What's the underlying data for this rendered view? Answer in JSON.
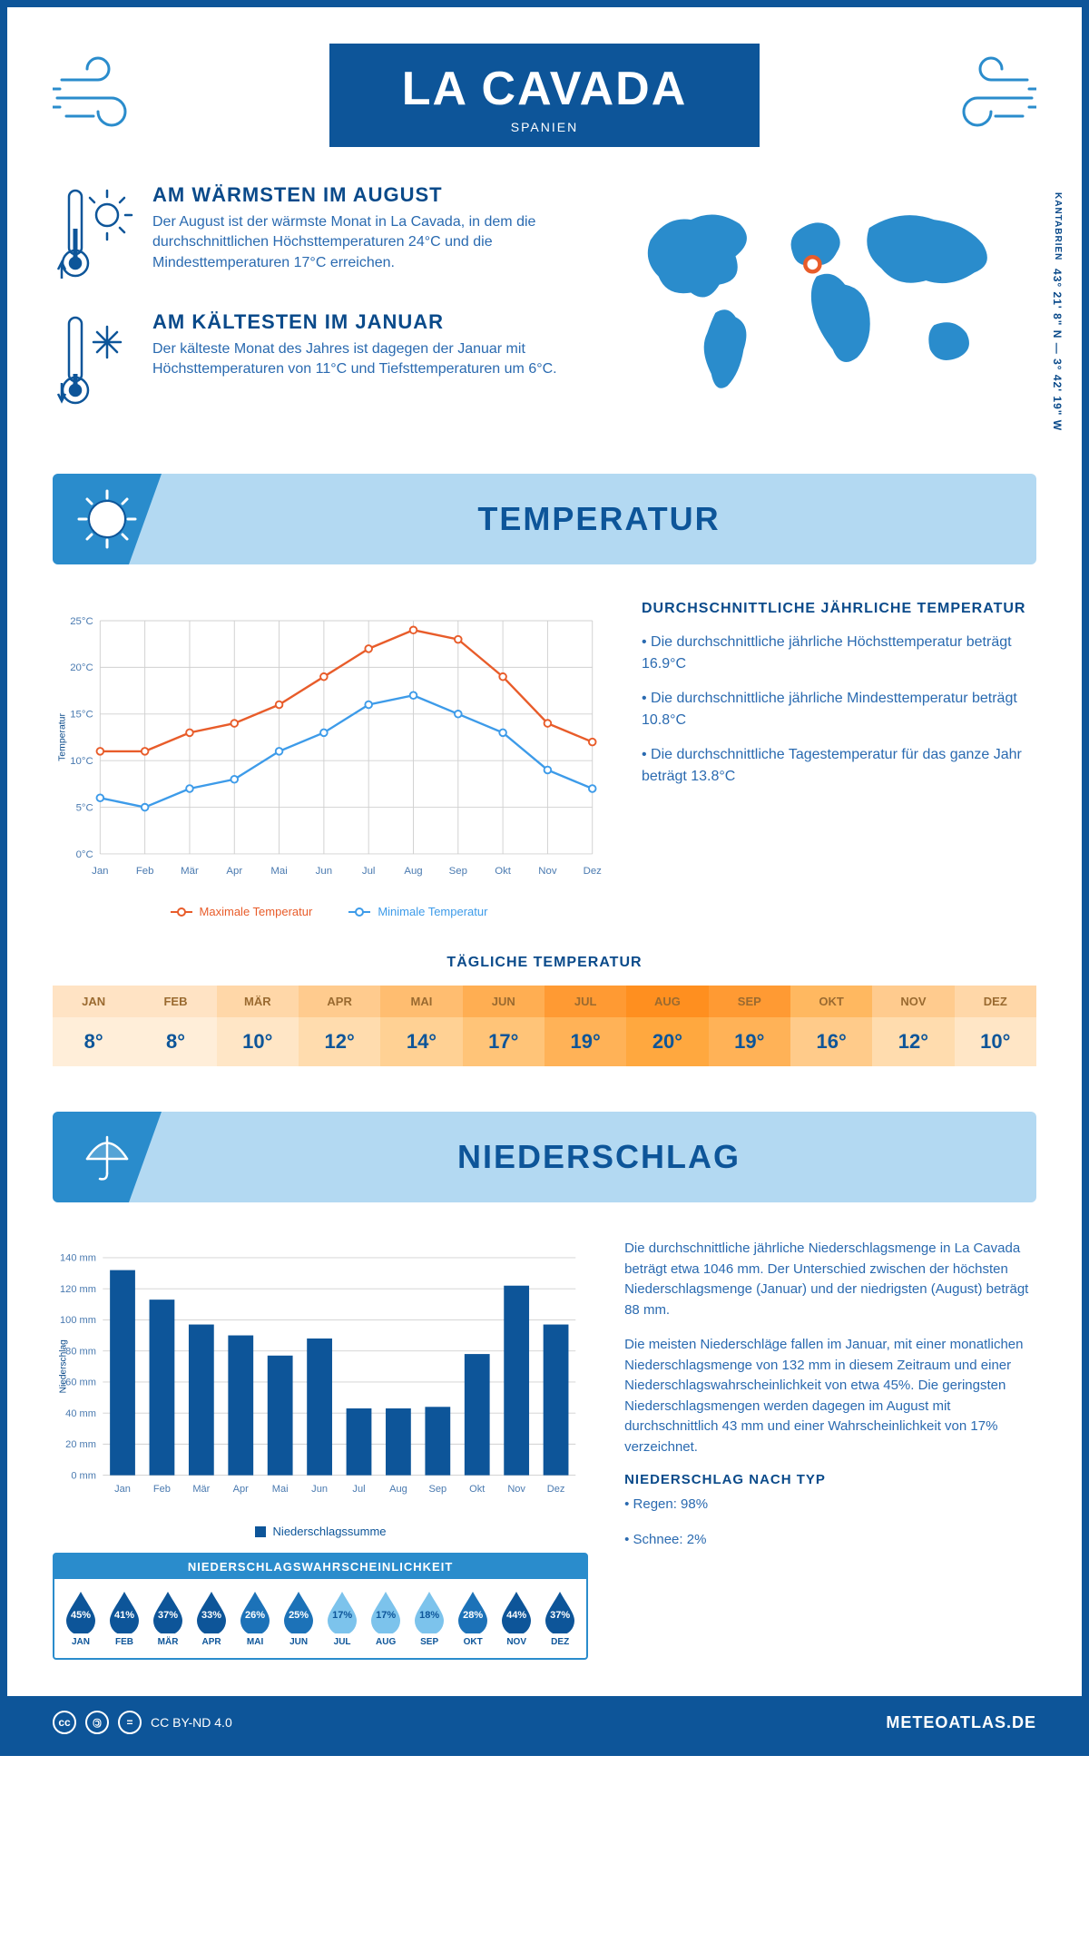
{
  "header": {
    "title": "LA CAVADA",
    "subtitle": "SPANIEN"
  },
  "coords": {
    "text": "43° 21' 8\" N — 3° 42' 19\" W",
    "region": "KANTABRIEN"
  },
  "facts": {
    "warm": {
      "title": "AM WÄRMSTEN IM AUGUST",
      "text": "Der August ist der wärmste Monat in La Cavada, in dem die durchschnittlichen Höchsttemperaturen 24°C und die Mindesttemperaturen 17°C erreichen."
    },
    "cold": {
      "title": "AM KÄLTESTEN IM JANUAR",
      "text": "Der kälteste Monat des Jahres ist dagegen der Januar mit Höchsttemperaturen von 11°C und Tiefsttemperaturen um 6°C."
    }
  },
  "sections": {
    "temp": "TEMPERATUR",
    "precip": "NIEDERSCHLAG"
  },
  "temp_chart": {
    "months": [
      "Jan",
      "Feb",
      "Mär",
      "Apr",
      "Mai",
      "Jun",
      "Jul",
      "Aug",
      "Sep",
      "Okt",
      "Nov",
      "Dez"
    ],
    "max": [
      11,
      11,
      13,
      14,
      16,
      19,
      22,
      24,
      23,
      19,
      14,
      12
    ],
    "min": [
      6,
      5,
      7,
      8,
      11,
      13,
      16,
      17,
      15,
      13,
      9,
      7
    ],
    "ylim": [
      0,
      25
    ],
    "ytick": 5,
    "max_color": "#e85c2a",
    "min_color": "#3d9be9",
    "grid_color": "#d8d8d8",
    "bg": "#ffffff",
    "ylabel": "Temperatur",
    "legend_max": "Maximale Temperatur",
    "legend_min": "Minimale Temperatur"
  },
  "temp_annual": {
    "heading": "DURCHSCHNITTLICHE JÄHRLICHE TEMPERATUR",
    "b1": "• Die durchschnittliche jährliche Höchsttemperatur beträgt 16.9°C",
    "b2": "• Die durchschnittliche jährliche Mindesttemperatur beträgt 10.8°C",
    "b3": "• Die durchschnittliche Tagestemperatur für das ganze Jahr beträgt 13.8°C"
  },
  "daily_temp": {
    "title": "TÄGLICHE TEMPERATUR",
    "months": [
      "JAN",
      "FEB",
      "MÄR",
      "APR",
      "MAI",
      "JUN",
      "JUL",
      "AUG",
      "SEP",
      "OKT",
      "NOV",
      "DEZ"
    ],
    "values": [
      "8°",
      "8°",
      "10°",
      "12°",
      "14°",
      "17°",
      "19°",
      "20°",
      "19°",
      "16°",
      "12°",
      "10°"
    ],
    "header_colors": [
      "#ffe3c4",
      "#ffe3c4",
      "#ffd7a8",
      "#ffcb8e",
      "#ffbd70",
      "#ffae52",
      "#ff9a33",
      "#ff8f1f",
      "#ff9a33",
      "#ffb860",
      "#ffcb8e",
      "#ffd7a8"
    ],
    "value_colors": [
      "#ffeed9",
      "#ffeed9",
      "#ffe6c6",
      "#ffdcae",
      "#ffd194",
      "#ffc478",
      "#ffb257",
      "#ffa83f",
      "#ffb257",
      "#ffcb8a",
      "#ffdcae",
      "#ffe6c6"
    ]
  },
  "precip_chart": {
    "months": [
      "Jan",
      "Feb",
      "Mär",
      "Apr",
      "Mai",
      "Jun",
      "Jul",
      "Aug",
      "Sep",
      "Okt",
      "Nov",
      "Dez"
    ],
    "values": [
      132,
      113,
      97,
      90,
      77,
      88,
      43,
      43,
      44,
      78,
      122,
      97
    ],
    "ylim": [
      0,
      140
    ],
    "ytick": 20,
    "bar_color": "#0d5599",
    "grid_color": "#d8d8d8",
    "ylabel": "Niederschlag",
    "legend": "Niederschlagssumme"
  },
  "precip_text": {
    "p1": "Die durchschnittliche jährliche Niederschlagsmenge in La Cavada beträgt etwa 1046 mm. Der Unterschied zwischen der höchsten Niederschlagsmenge (Januar) und der niedrigsten (August) beträgt 88 mm.",
    "p2": "Die meisten Niederschläge fallen im Januar, mit einer monatlichen Niederschlagsmenge von 132 mm in diesem Zeitraum und einer Niederschlagswahrscheinlichkeit von etwa 45%. Die geringsten Niederschlagsmengen werden dagegen im August mit durchschnittlich 43 mm und einer Wahrscheinlichkeit von 17% verzeichnet.",
    "type_heading": "NIEDERSCHLAG NACH TYP",
    "type1": "• Regen: 98%",
    "type2": "• Schnee: 2%"
  },
  "precip_prob": {
    "title": "NIEDERSCHLAGSWAHRSCHEINLICHKEIT",
    "months": [
      "JAN",
      "FEB",
      "MÄR",
      "APR",
      "MAI",
      "JUN",
      "JUL",
      "AUG",
      "SEP",
      "OKT",
      "NOV",
      "DEZ"
    ],
    "values": [
      "45%",
      "41%",
      "37%",
      "33%",
      "26%",
      "25%",
      "17%",
      "17%",
      "18%",
      "28%",
      "44%",
      "37%"
    ],
    "colors": [
      "#0d5599",
      "#0d5599",
      "#0d5599",
      "#0d5599",
      "#1c72b8",
      "#1c72b8",
      "#7cc3ec",
      "#7cc3ec",
      "#7cc3ec",
      "#1c72b8",
      "#0d5599",
      "#0d5599"
    ],
    "text_colors": [
      "#fff",
      "#fff",
      "#fff",
      "#fff",
      "#fff",
      "#fff",
      "#0d5599",
      "#0d5599",
      "#0d5599",
      "#fff",
      "#fff",
      "#fff"
    ]
  },
  "footer": {
    "license": "CC BY-ND 4.0",
    "brand": "METEOATLAS.DE"
  }
}
